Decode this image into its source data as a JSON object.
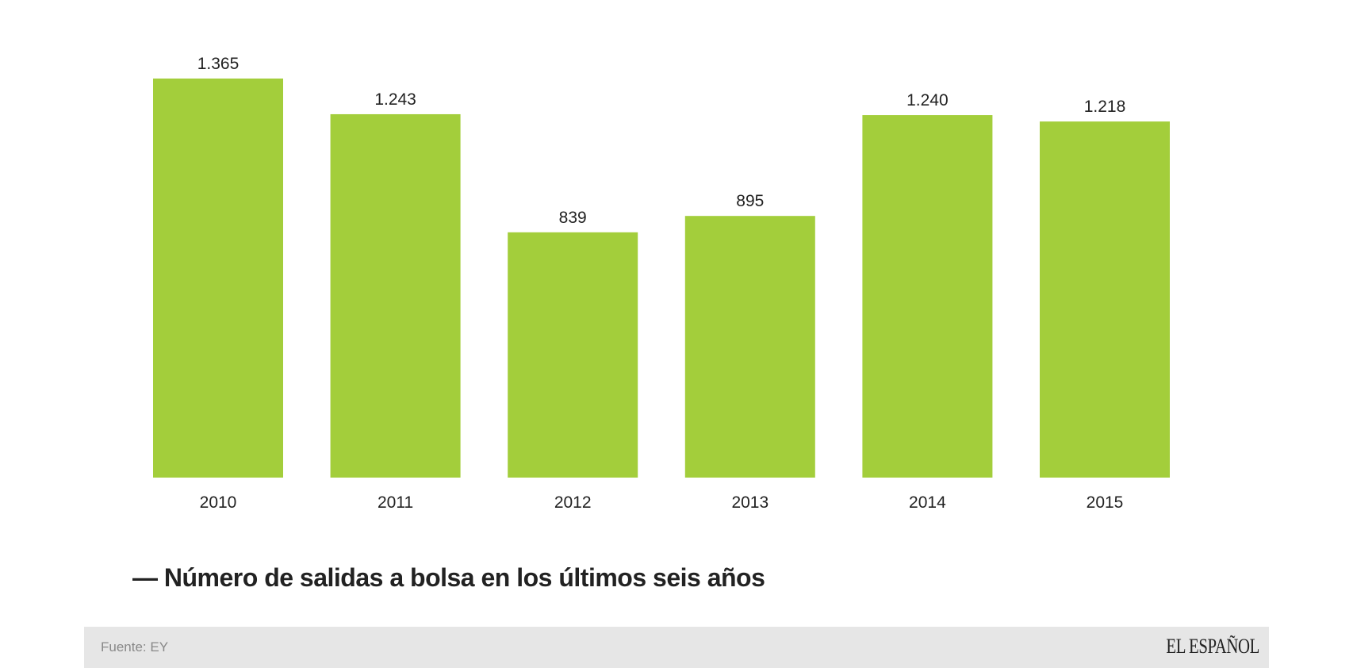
{
  "chart_data": {
    "type": "bar",
    "title": "Número de salidas a bolsa en los últimos seis años",
    "categories": [
      "2010",
      "2011",
      "2012",
      "2013",
      "2014",
      "2015"
    ],
    "values": [
      1365,
      1243,
      839,
      895,
      1240,
      1218
    ],
    "data_labels": [
      "1.365",
      "1.243",
      "839",
      "895",
      "1.240",
      "1.218"
    ],
    "ylim": [
      0,
      1365
    ],
    "grid": false,
    "bar_color": "#a3ce3b"
  },
  "title_dash": "—",
  "footer": {
    "source": "Fuente: EY",
    "logo": "EL ESPAÑOL"
  }
}
